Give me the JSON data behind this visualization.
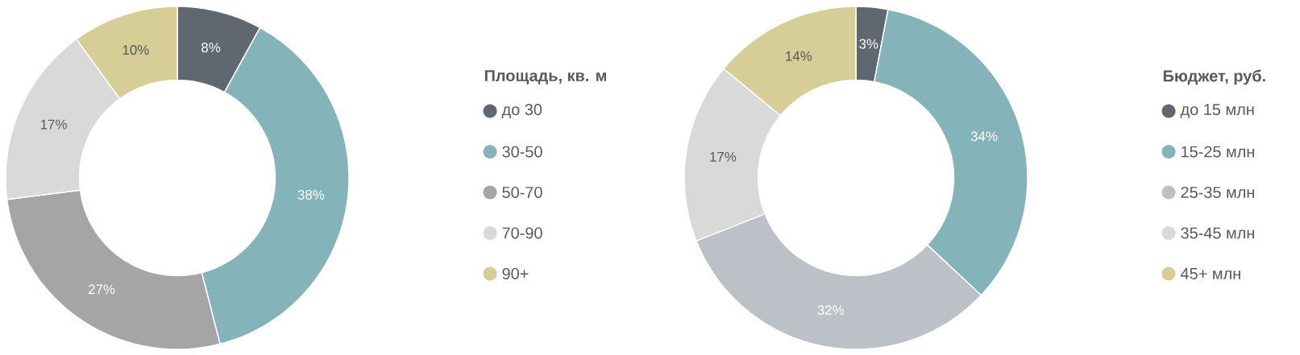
{
  "chart_data": [
    {
      "type": "donut",
      "legend_title": "Площадь, кв. м",
      "categories": [
        "до 30",
        "30-50",
        "50-70",
        "70-90",
        "90+"
      ],
      "values": [
        8,
        38,
        27,
        17,
        10
      ],
      "value_labels": [
        "8%",
        "38%",
        "27%",
        "17%",
        "10%"
      ],
      "colors": [
        "#5f6870",
        "#84b4b9",
        "#a5a5a5",
        "#d9d9d9",
        "#d6ce96"
      ],
      "legend": "right"
    },
    {
      "type": "donut",
      "legend_title": "Бюджет, руб.",
      "categories": [
        "до 15 млн",
        "15-25 млн",
        "25-35 млн",
        "35-45 млн",
        "45+ млн"
      ],
      "values": [
        3,
        34,
        32,
        17,
        14
      ],
      "value_labels": [
        "3%",
        "34%",
        "32%",
        "17%",
        "14%"
      ],
      "colors": [
        "#5f6870",
        "#84b4b9",
        "#bcc1c7",
        "#d9d9d9",
        "#d6ce96"
      ],
      "legend": "right"
    }
  ]
}
